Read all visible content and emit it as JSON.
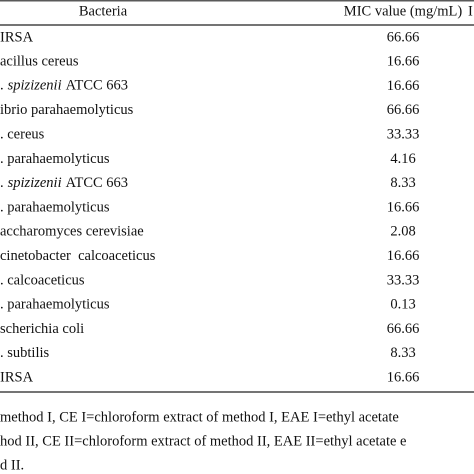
{
  "table": {
    "header": [
      "Bacteria",
      "MIC value (mg/mL)",
      "I"
    ],
    "rows": [
      [
        "IRSA",
        "66.66"
      ],
      [
        "acillus cereus",
        "16.66"
      ],
      [
        [
          {
            "text": ".",
            "italic": false
          },
          {
            "text": "spizizenii",
            "italic": true
          },
          {
            "text": "ATCC 663",
            "italic": false
          }
        ],
        "16.66"
      ],
      [
        "ibrio parahaemolyticus",
        "66.66"
      ],
      [
        ". cereus",
        "33.33"
      ],
      [
        ". parahaemolyticus",
        "4.16"
      ],
      [
        [
          {
            "text": ".",
            "italic": false
          },
          {
            "text": "spizizenii",
            "italic": true
          },
          {
            "text": "ATCC 663",
            "italic": false
          }
        ],
        "8.33"
      ],
      [
        ". parahaemolyticus",
        "16.66"
      ],
      [
        "accharomyces cerevisiae",
        "2.08"
      ],
      [
        "cinetobacter  calcoaceticus",
        "16.66"
      ],
      [
        ". calcoaceticus",
        "33.33"
      ],
      [
        ". parahaemolyticus",
        "0.13"
      ],
      [
        "scherichia coli",
        "66.66"
      ],
      [
        ". subtilis",
        "8.33"
      ],
      [
        "IRSA",
        "16.66"
      ]
    ]
  },
  "footnote": [
    "method I, CE I=chloroform extract of method I, EAE I=ethyl acetate",
    "hod II, CE II=chloroform extract of method II, EAE II=ethyl acetate e",
    "d II."
  ]
}
